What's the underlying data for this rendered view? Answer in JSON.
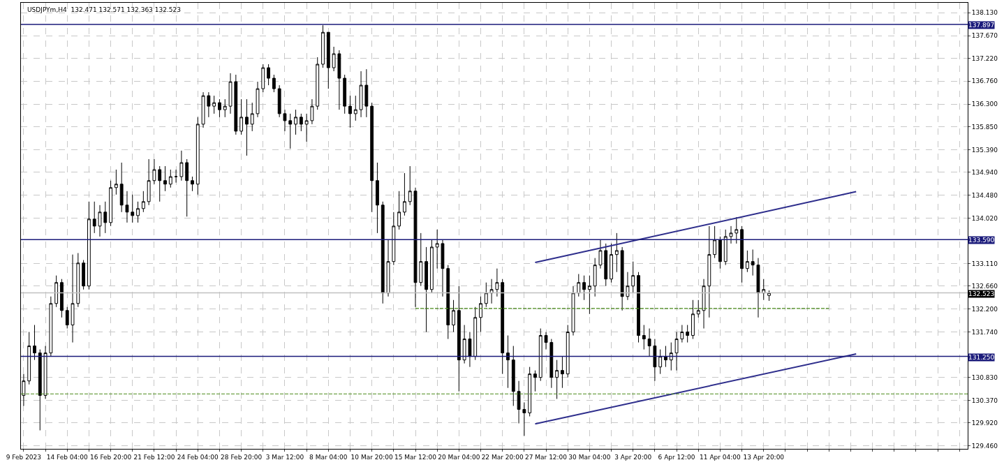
{
  "chart_data": {
    "type": "candlestick",
    "title": "USDJPYm,H4  132.471 132.571 132.363 132.523",
    "categories": [
      "9 Feb 2023",
      null,
      null,
      null,
      null,
      null,
      null,
      null,
      "14 Feb 04:00",
      null,
      null,
      null,
      null,
      null,
      null,
      null,
      "16 Feb 20:00",
      null,
      null,
      null,
      null,
      null,
      null,
      null,
      "21 Feb 12:00",
      null,
      null,
      null,
      null,
      null,
      null,
      null,
      "24 Feb 04:00",
      null,
      null,
      null,
      null,
      null,
      null,
      null,
      "28 Feb 20:00",
      null,
      null,
      null,
      null,
      null,
      null,
      null,
      "3 Mar 12:00",
      null,
      null,
      null,
      null,
      null,
      null,
      null,
      "8 Mar 04:00",
      null,
      null,
      null,
      null,
      null,
      null,
      null,
      "10 Mar 20:00",
      null,
      null,
      null,
      null,
      null,
      null,
      null,
      "15 Mar 12:00",
      null,
      null,
      null,
      null,
      null,
      null,
      null,
      "20 Mar 04:00",
      null,
      null,
      null,
      null,
      null,
      null,
      null,
      "22 Mar 20:00",
      null,
      null,
      null,
      null,
      null,
      null,
      null,
      "27 Mar 12:00",
      null,
      null,
      null,
      null,
      null,
      null,
      null,
      "30 Mar 04:00",
      null,
      null,
      null,
      null,
      null,
      null,
      null,
      "3 Apr 20:00",
      null,
      null,
      null,
      null,
      null,
      null,
      null,
      "6 Apr 12:00",
      null,
      null,
      null,
      null,
      null,
      null,
      null,
      "11 Apr 04:00",
      null,
      null,
      null,
      null,
      null,
      null,
      null,
      "13 Apr 20:00",
      null,
      null,
      null,
      null,
      null,
      null,
      null,
      null,
      null,
      null,
      null,
      null,
      null,
      null,
      null,
      null,
      null,
      null,
      null,
      null,
      null,
      null,
      null,
      null,
      null,
      null,
      null,
      null,
      null,
      null,
      null,
      null,
      null,
      null,
      null,
      null,
      null
    ],
    "ohlc": [
      [
        130.47,
        130.9,
        130.26,
        130.76
      ],
      [
        130.76,
        131.74,
        130.69,
        131.46
      ],
      [
        131.46,
        131.88,
        131.18,
        131.32
      ],
      [
        131.32,
        131.39,
        129.77,
        130.47
      ],
      [
        130.47,
        131.46,
        130.4,
        131.32
      ],
      [
        131.32,
        132.45,
        131.25,
        132.31
      ],
      [
        132.31,
        132.87,
        132.24,
        132.73
      ],
      [
        132.73,
        132.8,
        132.03,
        132.17
      ],
      [
        132.17,
        132.24,
        131.81,
        131.88
      ],
      [
        131.88,
        133.29,
        131.53,
        132.31
      ],
      [
        132.31,
        133.32,
        132.24,
        133.12
      ],
      [
        133.12,
        133.18,
        132.59,
        132.66
      ],
      [
        132.66,
        134.35,
        132.59,
        134.0
      ],
      [
        134.0,
        134.35,
        133.72,
        133.86
      ],
      [
        133.86,
        134.28,
        133.65,
        134.14
      ],
      [
        134.14,
        134.35,
        133.72,
        133.93
      ],
      [
        133.93,
        134.77,
        133.86,
        134.63
      ],
      [
        134.63,
        134.99,
        134.49,
        134.7
      ],
      [
        134.7,
        135.13,
        134.14,
        134.28
      ],
      [
        134.28,
        134.56,
        133.93,
        134.14
      ],
      [
        134.14,
        134.49,
        133.93,
        134.07
      ],
      [
        134.07,
        134.35,
        133.93,
        134.21
      ],
      [
        134.21,
        134.56,
        134.14,
        134.35
      ],
      [
        134.35,
        135.2,
        134.28,
        134.77
      ],
      [
        134.77,
        135.2,
        134.7,
        134.99
      ],
      [
        134.99,
        135.06,
        134.35,
        134.77
      ],
      [
        134.77,
        135.06,
        134.56,
        134.7
      ],
      [
        134.7,
        134.99,
        134.63,
        134.85
      ],
      [
        134.85,
        134.99,
        134.73,
        134.85
      ],
      [
        134.85,
        135.37,
        134.77,
        135.13
      ],
      [
        135.13,
        135.2,
        134.05,
        134.77
      ],
      [
        134.77,
        134.85,
        134.56,
        134.7
      ],
      [
        134.7,
        136.04,
        134.49,
        135.9
      ],
      [
        135.9,
        136.54,
        135.83,
        136.47
      ],
      [
        136.47,
        136.54,
        136.04,
        136.26
      ],
      [
        136.26,
        136.47,
        136.11,
        136.33
      ],
      [
        136.33,
        136.4,
        136.04,
        136.19
      ],
      [
        136.19,
        136.4,
        136.04,
        136.26
      ],
      [
        136.26,
        136.92,
        136.11,
        136.75
      ],
      [
        136.75,
        136.89,
        135.69,
        135.76
      ],
      [
        135.76,
        136.4,
        135.69,
        136.04
      ],
      [
        136.04,
        136.4,
        135.27,
        135.9
      ],
      [
        135.9,
        136.33,
        135.76,
        136.11
      ],
      [
        136.11,
        136.75,
        136.04,
        136.61
      ],
      [
        136.61,
        137.1,
        136.54,
        137.03
      ],
      [
        137.03,
        137.1,
        136.68,
        136.82
      ],
      [
        136.82,
        136.89,
        136.54,
        136.61
      ],
      [
        136.61,
        136.68,
        136.04,
        136.11
      ],
      [
        136.11,
        136.19,
        135.76,
        135.97
      ],
      [
        135.97,
        136.11,
        135.41,
        135.9
      ],
      [
        135.9,
        136.19,
        135.69,
        136.04
      ],
      [
        136.04,
        136.11,
        135.76,
        135.9
      ],
      [
        135.9,
        136.11,
        135.55,
        135.97
      ],
      [
        135.97,
        136.4,
        135.9,
        136.26
      ],
      [
        136.26,
        137.24,
        136.19,
        137.1
      ],
      [
        137.1,
        137.88,
        137.03,
        137.74
      ],
      [
        137.74,
        137.74,
        136.61,
        137.03
      ],
      [
        137.03,
        137.45,
        136.96,
        137.31
      ],
      [
        137.31,
        137.38,
        136.19,
        136.82
      ],
      [
        136.82,
        136.89,
        136.11,
        136.26
      ],
      [
        136.26,
        136.47,
        135.83,
        136.11
      ],
      [
        136.11,
        136.47,
        135.97,
        136.19
      ],
      [
        136.19,
        136.96,
        136.04,
        136.68
      ],
      [
        136.68,
        137.0,
        136.04,
        136.26
      ],
      [
        136.26,
        136.33,
        134.14,
        134.77
      ],
      [
        134.77,
        135.13,
        133.72,
        134.28
      ],
      [
        134.28,
        134.35,
        132.31,
        132.52
      ],
      [
        132.52,
        133.58,
        132.45,
        133.15
      ],
      [
        133.15,
        134.14,
        133.08,
        133.86
      ],
      [
        133.86,
        134.56,
        133.79,
        134.14
      ],
      [
        134.14,
        134.92,
        134.07,
        134.35
      ],
      [
        134.35,
        135.06,
        134.28,
        134.56
      ],
      [
        134.56,
        134.63,
        132.24,
        132.73
      ],
      [
        132.73,
        133.72,
        132.66,
        133.15
      ],
      [
        133.15,
        133.44,
        131.74,
        132.59
      ],
      [
        132.59,
        133.58,
        132.52,
        133.44
      ],
      [
        133.44,
        133.79,
        133.01,
        133.51
      ],
      [
        133.51,
        133.58,
        132.45,
        133.01
      ],
      [
        133.01,
        133.08,
        131.6,
        131.88
      ],
      [
        131.88,
        132.38,
        131.74,
        132.17
      ],
      [
        132.17,
        132.66,
        130.55,
        131.18
      ],
      [
        131.18,
        131.88,
        131.11,
        131.6
      ],
      [
        131.6,
        131.74,
        131.04,
        131.25
      ],
      [
        131.25,
        132.24,
        131.18,
        132.03
      ],
      [
        132.03,
        132.45,
        131.74,
        132.31
      ],
      [
        132.31,
        132.73,
        132.24,
        132.52
      ],
      [
        132.52,
        132.8,
        132.31,
        132.59
      ],
      [
        132.59,
        133.01,
        132.45,
        132.73
      ],
      [
        132.73,
        132.8,
        130.9,
        131.32
      ],
      [
        131.32,
        131.67,
        130.62,
        131.18
      ],
      [
        131.18,
        131.46,
        130.26,
        130.55
      ],
      [
        130.55,
        130.76,
        129.91,
        130.19
      ],
      [
        130.19,
        130.33,
        129.66,
        130.12
      ],
      [
        130.12,
        131.04,
        130.05,
        130.9
      ],
      [
        130.9,
        130.97,
        130.55,
        130.83
      ],
      [
        130.83,
        131.81,
        130.76,
        131.67
      ],
      [
        131.67,
        131.74,
        131.39,
        131.53
      ],
      [
        131.53,
        131.6,
        130.62,
        130.83
      ],
      [
        130.83,
        131.18,
        130.4,
        130.97
      ],
      [
        130.97,
        131.25,
        130.62,
        130.9
      ],
      [
        130.9,
        131.88,
        130.83,
        131.74
      ],
      [
        131.74,
        132.66,
        131.67,
        132.52
      ],
      [
        132.52,
        132.9,
        132.45,
        132.73
      ],
      [
        132.73,
        132.87,
        132.38,
        132.59
      ],
      [
        132.59,
        132.87,
        132.1,
        132.66
      ],
      [
        132.66,
        133.22,
        132.45,
        133.08
      ],
      [
        133.08,
        133.58,
        133.01,
        133.37
      ],
      [
        133.37,
        133.51,
        132.66,
        132.8
      ],
      [
        132.8,
        133.51,
        132.73,
        133.29
      ],
      [
        133.29,
        133.72,
        132.94,
        133.37
      ],
      [
        133.37,
        133.44,
        132.17,
        132.45
      ],
      [
        132.45,
        132.94,
        132.38,
        132.66
      ],
      [
        132.66,
        133.15,
        132.52,
        132.87
      ],
      [
        132.87,
        132.94,
        131.53,
        131.67
      ],
      [
        131.67,
        131.88,
        131.39,
        131.6
      ],
      [
        131.6,
        131.81,
        131.25,
        131.46
      ],
      [
        131.46,
        131.6,
        130.76,
        131.04
      ],
      [
        131.04,
        131.39,
        130.9,
        131.25
      ],
      [
        131.25,
        131.46,
        131.04,
        131.18
      ],
      [
        131.18,
        131.53,
        130.97,
        131.32
      ],
      [
        131.32,
        131.74,
        130.97,
        131.6
      ],
      [
        131.6,
        131.88,
        131.53,
        131.74
      ],
      [
        131.74,
        131.88,
        131.53,
        131.67
      ],
      [
        131.67,
        132.38,
        131.6,
        132.1
      ],
      [
        132.1,
        132.38,
        132.03,
        132.17
      ],
      [
        132.17,
        132.8,
        131.81,
        132.66
      ],
      [
        132.66,
        133.86,
        132.03,
        133.29
      ],
      [
        133.29,
        133.86,
        133.22,
        133.58
      ],
      [
        133.58,
        133.65,
        133.01,
        133.15
      ],
      [
        133.15,
        133.79,
        133.08,
        133.65
      ],
      [
        133.65,
        133.86,
        133.51,
        133.72
      ],
      [
        133.72,
        134.04,
        133.51,
        133.79
      ],
      [
        133.79,
        133.86,
        132.73,
        133.01
      ],
      [
        133.01,
        133.37,
        132.94,
        133.15
      ],
      [
        133.15,
        133.39,
        132.87,
        133.08
      ],
      [
        133.08,
        133.22,
        132.03,
        132.52
      ],
      [
        132.52,
        132.8,
        132.38,
        132.59
      ],
      [
        132.471,
        132.571,
        132.363,
        132.523
      ],
      null,
      null,
      null,
      null,
      null,
      null,
      null,
      null,
      null,
      null,
      null,
      null,
      null,
      null,
      null,
      null,
      null,
      null,
      null,
      null,
      null,
      null,
      null,
      null,
      null,
      null,
      null,
      null,
      null,
      null,
      null,
      null,
      null,
      null,
      null,
      null
    ],
    "series": [
      {
        "type": "line",
        "color": "#2e2e8c",
        "values": [
          null,
          null,
          null,
          null,
          null,
          null,
          null,
          null,
          null,
          null,
          null,
          null,
          null,
          null,
          null,
          null,
          null,
          null,
          null,
          null,
          null,
          null,
          null,
          null,
          null,
          null,
          null,
          null,
          null,
          null,
          null,
          null,
          null,
          null,
          null,
          null,
          null,
          null,
          null,
          null,
          null,
          null,
          null,
          null,
          null,
          null,
          null,
          null,
          null,
          null,
          null,
          null,
          null,
          null,
          null,
          null,
          null,
          null,
          null,
          null,
          null,
          null,
          null,
          null,
          null,
          null,
          null,
          null,
          null,
          null,
          null,
          null,
          null,
          null,
          null,
          null,
          null,
          null,
          null,
          null,
          null,
          null,
          null,
          null,
          null,
          null,
          null,
          null,
          null,
          null,
          null,
          null,
          null,
          null,
          133.13,
          null,
          null,
          null,
          null,
          null,
          null,
          null,
          null,
          null,
          null,
          null,
          null,
          null,
          null,
          null,
          null,
          null,
          null,
          null,
          null,
          null,
          null,
          null,
          null,
          null,
          null,
          null,
          null,
          null,
          null,
          null,
          null,
          null,
          null,
          null,
          null,
          null,
          null,
          null,
          null,
          null,
          null,
          null,
          null,
          null,
          null,
          null,
          null,
          null,
          null,
          null,
          null,
          null,
          null,
          null,
          null,
          null,
          null,
          134.55,
          null,
          null,
          null,
          null,
          null,
          null,
          null,
          null,
          null,
          null,
          null,
          null,
          null,
          null,
          null,
          null,
          null,
          null,
          null,
          null
        ]
      },
      {
        "type": "line",
        "color": "#2e2e8c",
        "values": [
          null,
          null,
          null,
          null,
          null,
          null,
          null,
          null,
          null,
          null,
          null,
          null,
          null,
          null,
          null,
          null,
          null,
          null,
          null,
          null,
          null,
          null,
          null,
          null,
          null,
          null,
          null,
          null,
          null,
          null,
          null,
          null,
          null,
          null,
          null,
          null,
          null,
          null,
          null,
          null,
          null,
          null,
          null,
          null,
          null,
          null,
          null,
          null,
          null,
          null,
          null,
          null,
          null,
          null,
          null,
          null,
          null,
          null,
          null,
          null,
          null,
          null,
          null,
          null,
          null,
          null,
          null,
          null,
          null,
          null,
          null,
          null,
          null,
          null,
          null,
          null,
          null,
          null,
          null,
          null,
          null,
          null,
          null,
          null,
          null,
          null,
          null,
          null,
          null,
          null,
          null,
          null,
          null,
          null,
          129.9,
          null,
          null,
          null,
          null,
          null,
          null,
          null,
          null,
          null,
          null,
          null,
          null,
          null,
          null,
          null,
          null,
          null,
          null,
          null,
          null,
          null,
          null,
          null,
          null,
          null,
          null,
          null,
          null,
          null,
          null,
          null,
          null,
          null,
          null,
          null,
          null,
          null,
          null,
          null,
          null,
          null,
          null,
          null,
          null,
          null,
          null,
          null,
          null,
          null,
          null,
          null,
          null,
          null,
          null,
          null,
          null,
          null,
          null,
          131.3,
          null,
          null,
          null,
          null,
          null,
          null,
          null,
          null,
          null,
          null,
          null,
          null,
          null,
          null,
          null,
          null,
          null,
          null,
          null,
          null
        ]
      },
      {
        "type": "line",
        "color": "#4a8a1a",
        "line_style": "dashed",
        "values": [
          null,
          null,
          null,
          null,
          null,
          null,
          null,
          null,
          null,
          null,
          null,
          null,
          null,
          null,
          null,
          null,
          null,
          null,
          null,
          null,
          null,
          null,
          null,
          null,
          null,
          null,
          null,
          null,
          null,
          null,
          null,
          null,
          null,
          null,
          null,
          null,
          null,
          null,
          null,
          null,
          null,
          null,
          null,
          null,
          null,
          null,
          null,
          null,
          null,
          null,
          null,
          null,
          null,
          null,
          null,
          null,
          null,
          null,
          null,
          null,
          null,
          null,
          null,
          null,
          null,
          null,
          null,
          null,
          null,
          null,
          null,
          null,
          132.21,
          null,
          null,
          null,
          null,
          null,
          null,
          null,
          null,
          null,
          null,
          null,
          null,
          null,
          null,
          null,
          null,
          null,
          null,
          null,
          null,
          null,
          null,
          null,
          null,
          null,
          null,
          null,
          null,
          null,
          null,
          null,
          null,
          null,
          null,
          null,
          null,
          null,
          null,
          null,
          null,
          null,
          null,
          null,
          null,
          null,
          null,
          null,
          null,
          null,
          null,
          null,
          null,
          null,
          null,
          null,
          null,
          null,
          null,
          null,
          null,
          null,
          null,
          null,
          null,
          null,
          null,
          null,
          null,
          null,
          null,
          null,
          null,
          null,
          null,
          null,
          132.21,
          null,
          null,
          null,
          null,
          null,
          null,
          null,
          null,
          null,
          null,
          null,
          null,
          null,
          null,
          null,
          null,
          null,
          null,
          null,
          null,
          null,
          null,
          null,
          null,
          null
        ]
      }
    ],
    "ref_lines": [
      {
        "axis": "y",
        "value": 137.897,
        "label": "137.897",
        "color": "#1a1a7a"
      },
      {
        "axis": "y",
        "value": 133.59,
        "label": "133.590",
        "color": "#1a1a7a"
      },
      {
        "axis": "y",
        "value": 131.25,
        "label": "131.250",
        "color": "#1a1a7a"
      },
      {
        "axis": "y",
        "value": 132.523,
        "label": "132.523",
        "color": "#c0c0c0"
      },
      {
        "axis": "y",
        "value": 130.5,
        "color": "#4a8a1a",
        "line_style": "dashed"
      }
    ],
    "ylim": [
      129.4,
      138.33
    ],
    "yticks": [
      {
        "value": 138.13,
        "label": "138.130"
      },
      {
        "value": 137.67,
        "label": "137.670"
      },
      {
        "value": 137.22,
        "label": "137.220"
      },
      {
        "value": 136.76,
        "label": "136.760"
      },
      {
        "value": 136.3,
        "label": "136.300"
      },
      {
        "value": 135.85,
        "label": "135.850"
      },
      {
        "value": 135.39,
        "label": "135.390"
      },
      {
        "value": 134.94,
        "label": "134.940"
      },
      {
        "value": 134.48,
        "label": "134.480"
      },
      {
        "value": 134.02,
        "label": "134.020"
      },
      {
        "value": 133.11,
        "label": "133.110"
      },
      {
        "value": 132.66,
        "label": "132.660"
      },
      {
        "value": 132.2,
        "label": "132.200"
      },
      {
        "value": 131.74,
        "label": "131.740"
      },
      {
        "value": 130.83,
        "label": "130.830"
      },
      {
        "value": 130.37,
        "label": "130.370"
      },
      {
        "value": 129.92,
        "label": "129.920"
      },
      {
        "value": 129.46,
        "label": "129.460"
      }
    ],
    "grid": true
  }
}
